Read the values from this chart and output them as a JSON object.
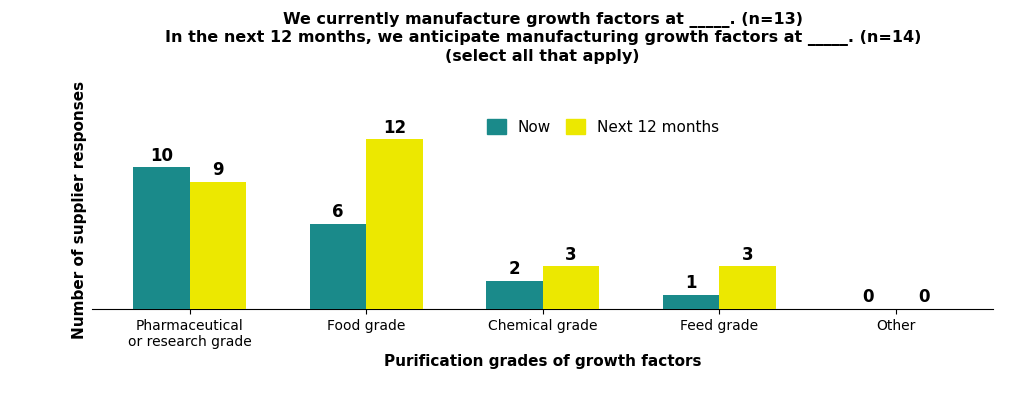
{
  "title_line1": "We currently manufacture growth factors at _____. (n=13)",
  "title_line2": "In the next 12 months, we anticipate manufacturing growth factors at _____. (n=14)",
  "title_line3": "(select all that apply)",
  "xlabel": "Purification grades of growth factors",
  "ylabel": "Number of supplier responses",
  "categories": [
    "Pharmaceutical\nor research grade",
    "Food grade",
    "Chemical grade",
    "Feed grade",
    "Other"
  ],
  "now_values": [
    10,
    6,
    2,
    1,
    0
  ],
  "next_values": [
    9,
    12,
    3,
    3,
    0
  ],
  "now_color": "#1a8a8a",
  "next_color": "#ece800",
  "legend_now": "Now",
  "legend_next": "Next 12 months",
  "bar_width": 0.32,
  "ylim": [
    0,
    14.0
  ],
  "background_color": "#ffffff",
  "label_fontsize": 11,
  "title_fontsize": 11.5,
  "axis_label_fontsize": 11,
  "tick_fontsize": 10,
  "value_label_fontsize": 12
}
